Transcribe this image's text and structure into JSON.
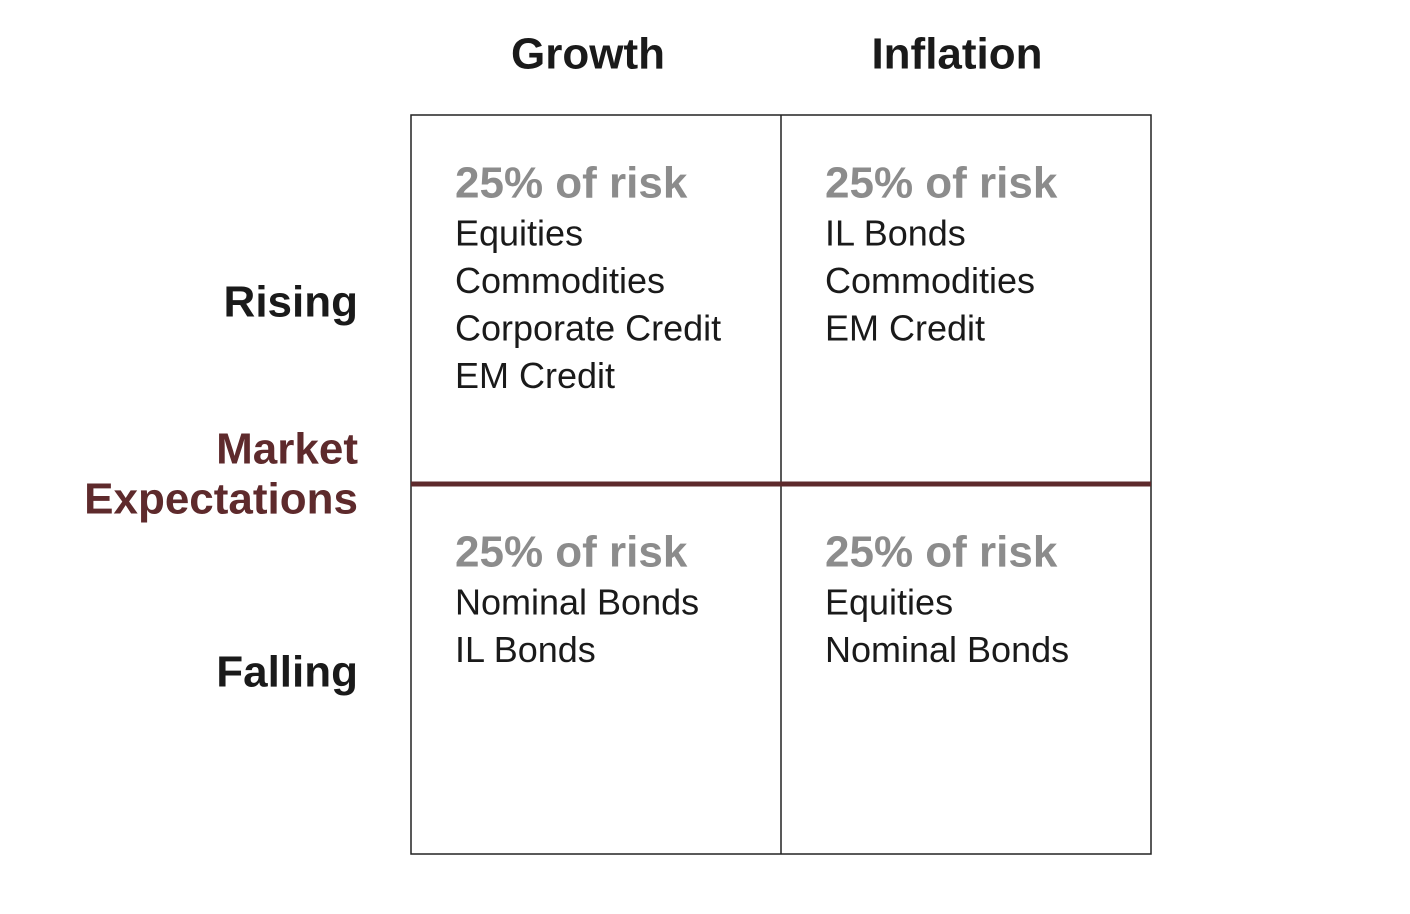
{
  "columns": [
    "Growth",
    "Inflation"
  ],
  "center_label": [
    "Market",
    "Expectations"
  ],
  "rows": [
    {
      "label": "Rising",
      "cells": [
        {
          "heading": "25% of risk",
          "items": [
            "Equities",
            "Commodities",
            "Corporate Credit",
            "EM Credit"
          ]
        },
        {
          "heading": "25% of risk",
          "items": [
            "IL Bonds",
            "Commodities",
            "EM Credit"
          ]
        }
      ]
    },
    {
      "label": "Falling",
      "cells": [
        {
          "heading": "25% of risk",
          "items": [
            "Nominal Bonds",
            "IL Bonds"
          ]
        },
        {
          "heading": "25% of risk",
          "items": [
            "Equities",
            "Nominal Bonds"
          ]
        }
      ]
    }
  ]
}
